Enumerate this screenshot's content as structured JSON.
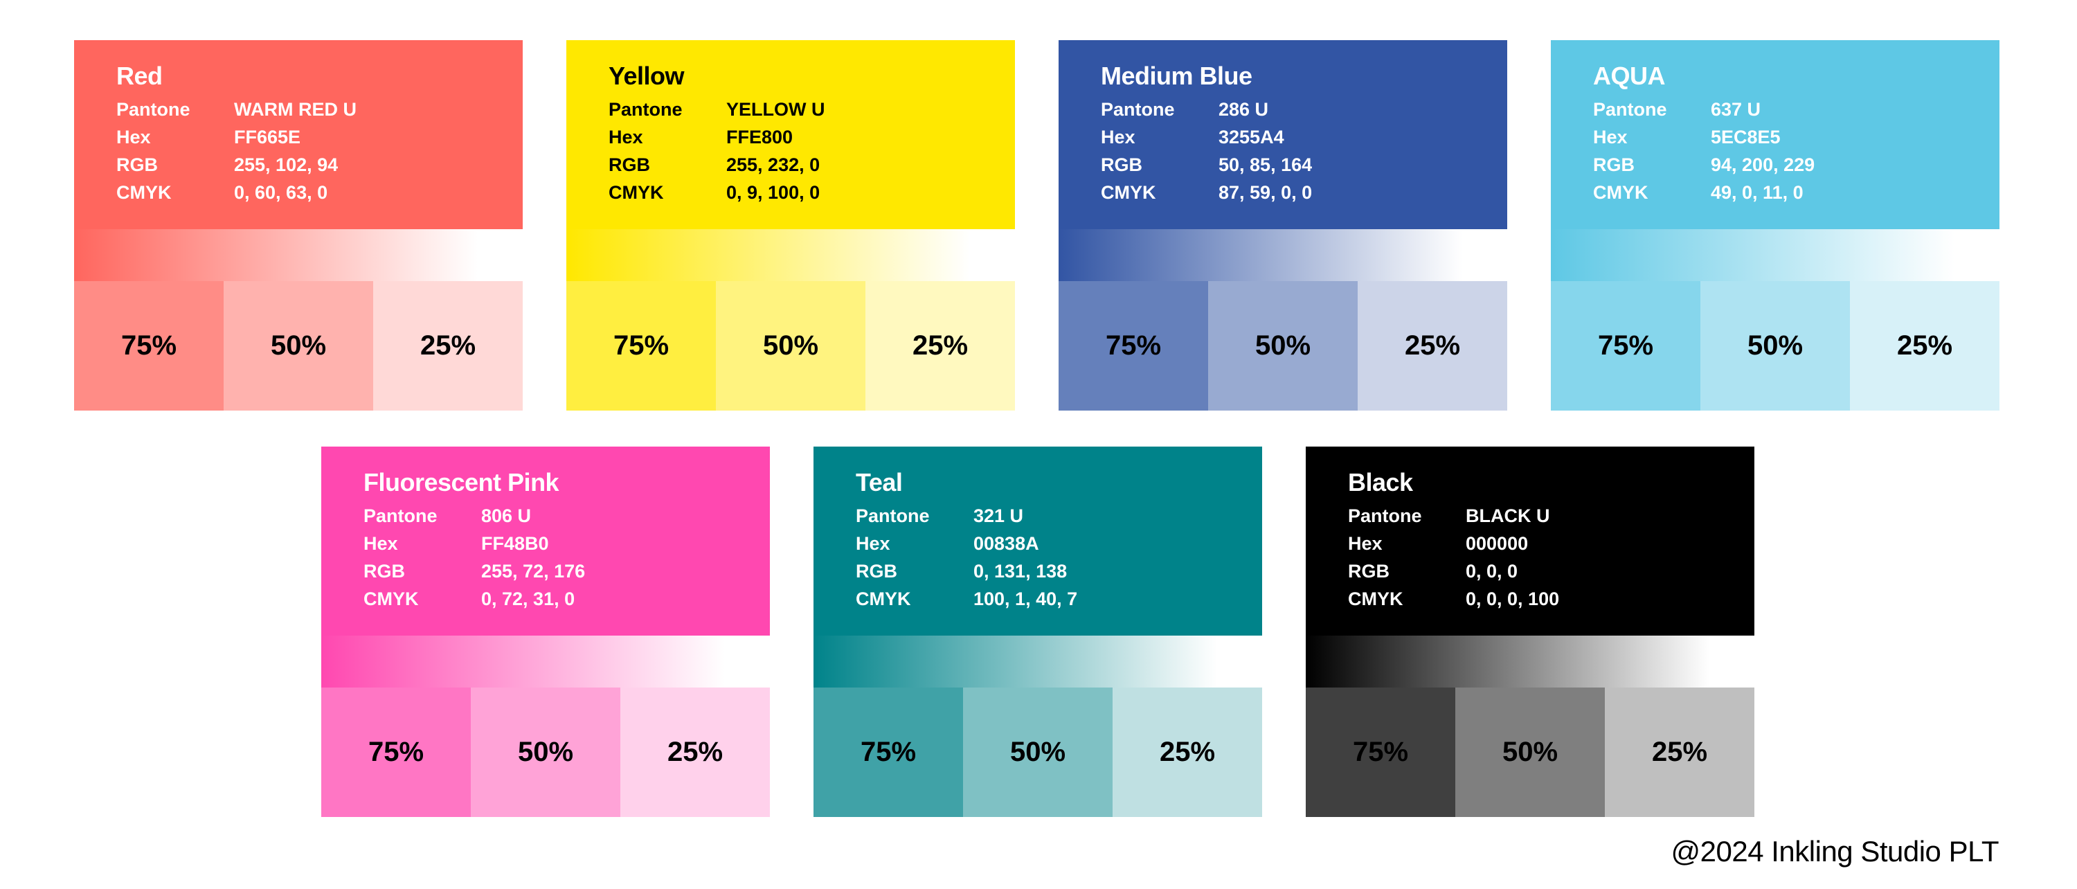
{
  "page": {
    "background": "#FFFFFF",
    "footer_text": "@2024 Inkling Studio PLT"
  },
  "field_labels": {
    "pantone": "Pantone",
    "hex": "Hex",
    "rgb": "RGB",
    "cmyk": "CMYK"
  },
  "tint_labels": [
    "75%",
    "50%",
    "25%"
  ],
  "swatches": [
    {
      "name": "Red",
      "pantone": "WARM RED U",
      "hex": "FF665E",
      "rgb": "255, 102, 94",
      "cmyk": "0, 60, 63, 0",
      "text_color": "#FFFFFF"
    },
    {
      "name": "Yellow",
      "pantone": "YELLOW U",
      "hex": "FFE800",
      "rgb": "255, 232, 0",
      "cmyk": "0, 9, 100, 0",
      "text_color": "#000000"
    },
    {
      "name": "Medium Blue",
      "pantone": "286 U",
      "hex": "3255A4",
      "rgb": "50, 85, 164",
      "cmyk": "87, 59, 0, 0",
      "text_color": "#FFFFFF"
    },
    {
      "name": "AQUA",
      "pantone": "637 U",
      "hex": "5EC8E5",
      "rgb": "94, 200, 229",
      "cmyk": "49, 0, 11, 0",
      "text_color": "#FFFFFF"
    },
    {
      "name": "Fluorescent Pink",
      "pantone": "806 U",
      "hex": "FF48B0",
      "rgb": "255, 72, 176",
      "cmyk": "0, 72, 31, 0",
      "text_color": "#FFFFFF"
    },
    {
      "name": "Teal",
      "pantone": "321 U",
      "hex": "00838A",
      "rgb": "0, 131, 138",
      "cmyk": "100, 1, 40, 7",
      "text_color": "#FFFFFF"
    },
    {
      "name": "Black",
      "pantone": "BLACK U",
      "hex": "000000",
      "rgb": "0, 0, 0",
      "cmyk": "0, 0, 0, 100",
      "text_color": "#FFFFFF"
    }
  ],
  "chart_data": {
    "type": "table",
    "title": "Color palette specification sheet",
    "columns": [
      "Color",
      "Pantone",
      "Hex",
      "RGB",
      "CMYK"
    ],
    "rows": [
      [
        "Red",
        "WARM RED U",
        "FF665E",
        "255, 102, 94",
        "0, 60, 63, 0"
      ],
      [
        "Yellow",
        "YELLOW U",
        "FFE800",
        "255, 232, 0",
        "0, 9, 100, 0"
      ],
      [
        "Medium Blue",
        "286 U",
        "3255A4",
        "50, 85, 164",
        "87, 59, 0, 0"
      ],
      [
        "AQUA",
        "637 U",
        "5EC8E5",
        "94, 200, 229",
        "49, 0, 11, 0"
      ],
      [
        "Fluorescent Pink",
        "806 U",
        "FF48B0",
        "255, 72, 176",
        "0, 72, 31, 0"
      ],
      [
        "Teal",
        "321 U",
        "00838A",
        "0, 131, 138",
        "100, 1, 40, 7"
      ],
      [
        "Black",
        "BLACK U",
        "000000",
        "0, 0, 0",
        "0, 0, 0, 100"
      ]
    ],
    "tint_levels_percent": [
      75,
      50,
      25
    ],
    "legend_position": "none",
    "grid": false
  }
}
